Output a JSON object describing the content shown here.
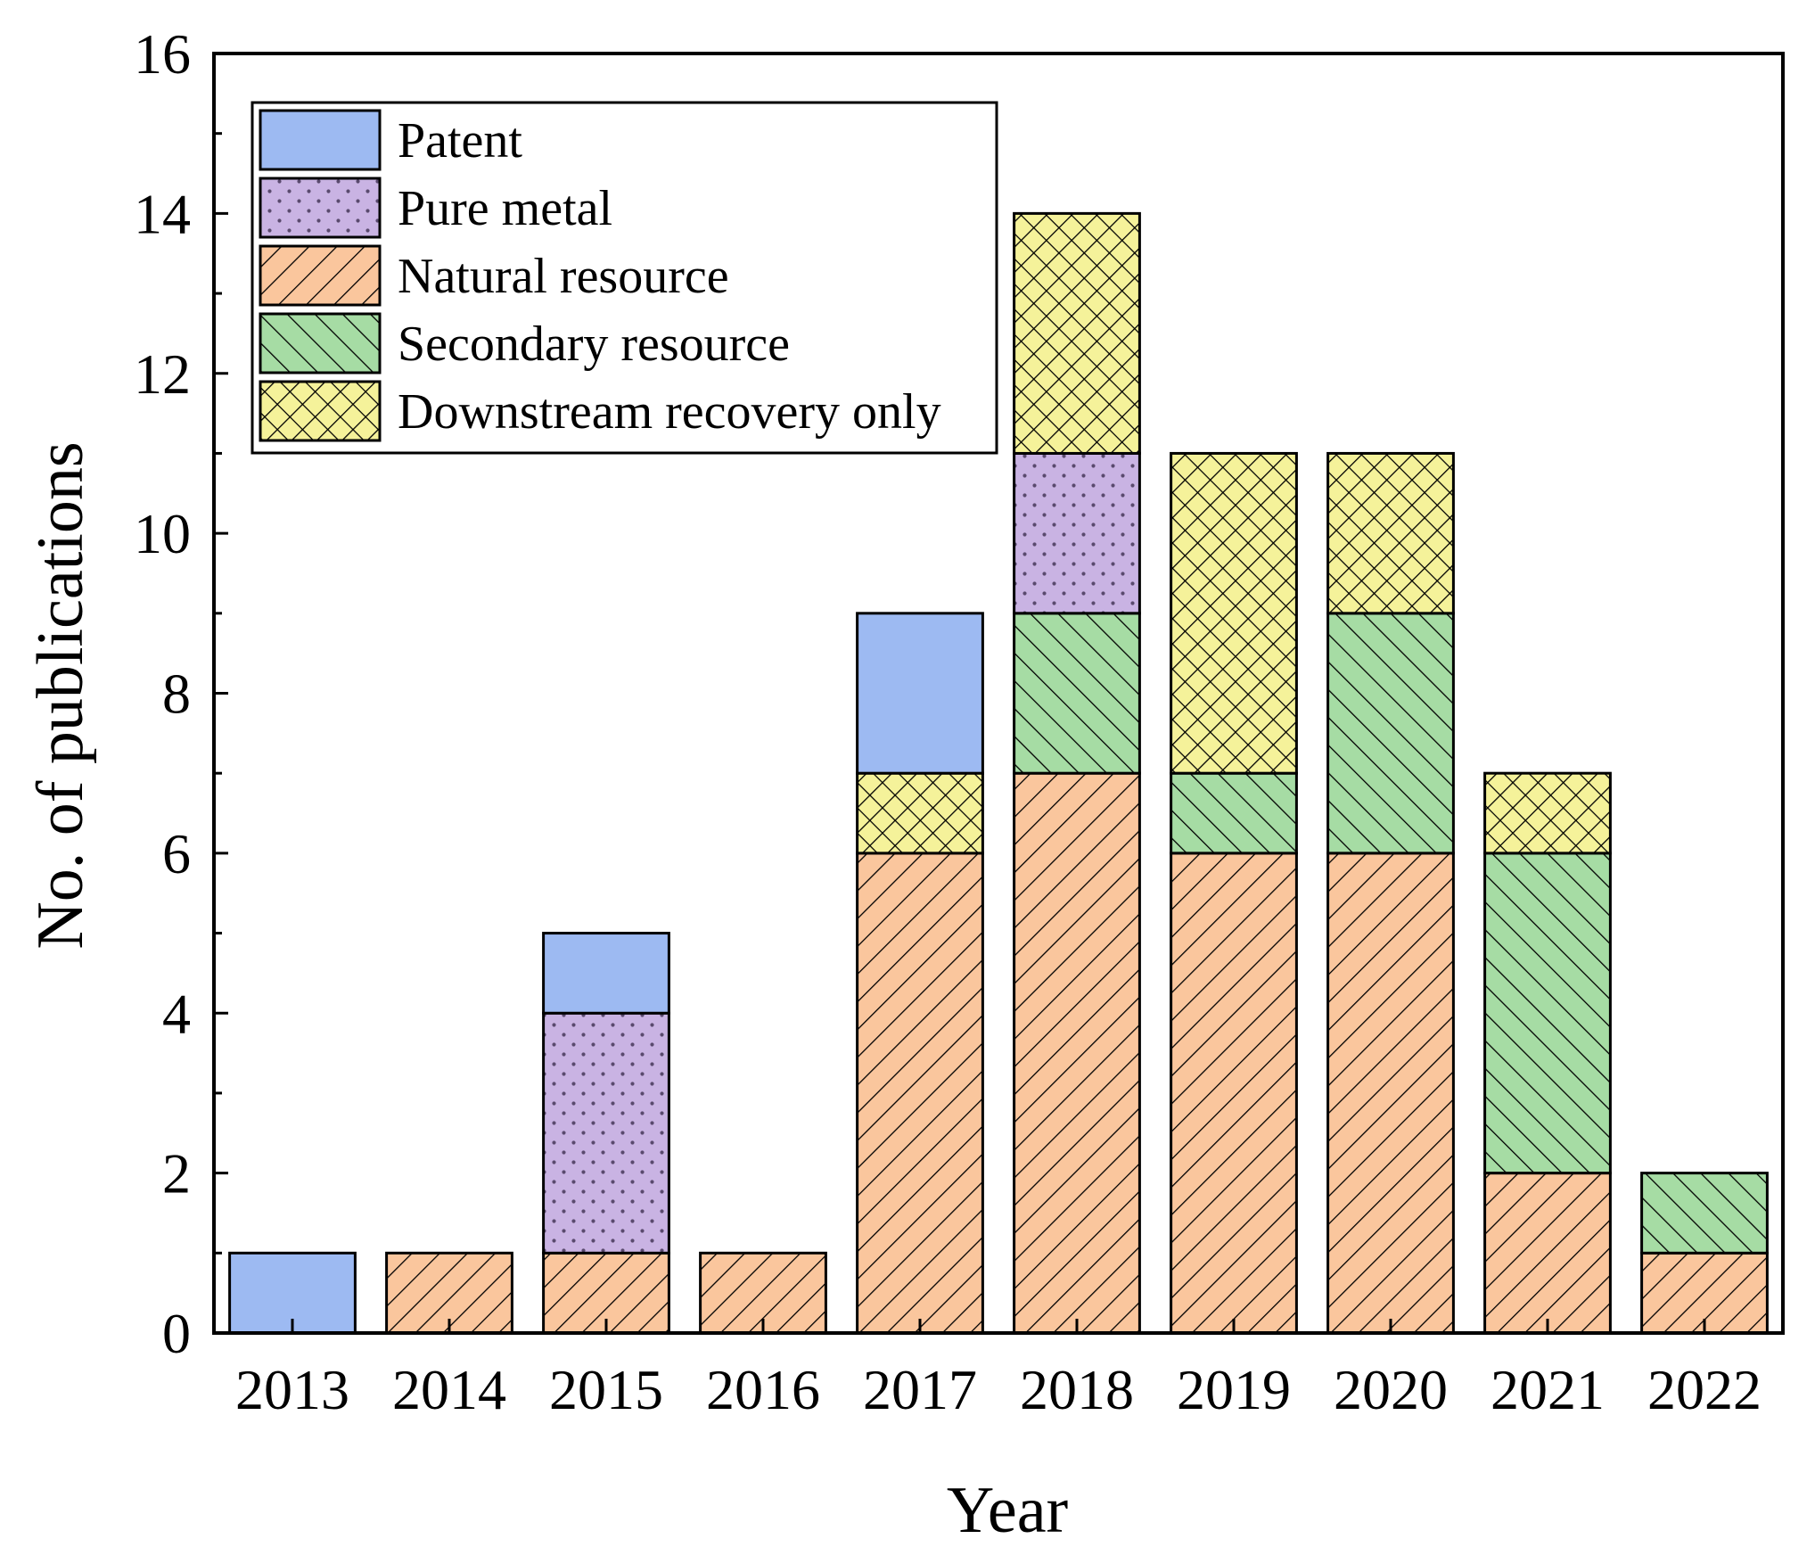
{
  "chart_data": {
    "type": "stacked-bar",
    "title": "",
    "xlabel": "Year",
    "ylabel": "No. of publications",
    "ylim": [
      0,
      16
    ],
    "yticks": [
      0,
      2,
      4,
      6,
      8,
      10,
      12,
      14,
      16
    ],
    "categories": [
      "2013",
      "2014",
      "2015",
      "2016",
      "2017",
      "2018",
      "2019",
      "2020",
      "2021",
      "2022"
    ],
    "stack_order_bottom_to_top": [
      "Natural resource",
      "Secondary resource",
      "Pure metal",
      "Downstream recovery only",
      "Patent"
    ],
    "series": [
      {
        "key": "patent",
        "name": "Patent",
        "color": "#9dbaf2",
        "pattern": "solid",
        "values": [
          1,
          0,
          1,
          0,
          2,
          0,
          0,
          0,
          0,
          0
        ]
      },
      {
        "key": "pure",
        "name": "Pure metal",
        "color": "#c9b3e3",
        "pattern": "dots",
        "values": [
          0,
          0,
          3,
          0,
          0,
          2,
          0,
          0,
          0,
          0
        ]
      },
      {
        "key": "natural",
        "name": "Natural resource",
        "color": "#fac69d",
        "pattern": "forward-diagonal",
        "values": [
          0,
          1,
          1,
          1,
          6,
          7,
          6,
          6,
          2,
          1
        ]
      },
      {
        "key": "secondary",
        "name": "Secondary resource",
        "color": "#a6dca4",
        "pattern": "backward-diagonal",
        "values": [
          0,
          0,
          0,
          0,
          0,
          2,
          1,
          3,
          4,
          1
        ]
      },
      {
        "key": "downstream",
        "name": "Downstream recovery only",
        "color": "#f5f29a",
        "pattern": "crosshatch",
        "values": [
          0,
          0,
          0,
          0,
          1,
          3,
          4,
          2,
          1,
          0
        ]
      }
    ],
    "legend_position": "top-left",
    "grid": false
  }
}
